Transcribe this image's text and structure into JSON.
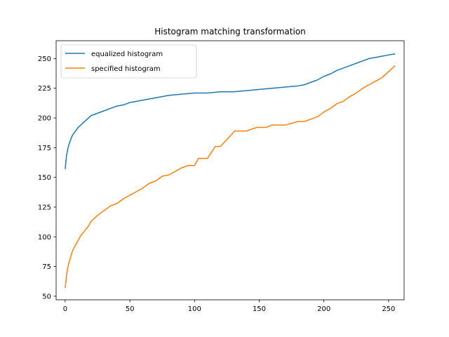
{
  "chart_data": {
    "type": "line",
    "title": "Histogram matching transformation",
    "xlabel": "",
    "ylabel": "",
    "xlim": [
      -7,
      262
    ],
    "ylim": [
      47,
      265
    ],
    "xticks": [
      0,
      50,
      100,
      150,
      200,
      250
    ],
    "yticks": [
      50,
      75,
      100,
      125,
      150,
      175,
      200,
      225,
      250
    ],
    "legend_position": "top-left",
    "grid": false,
    "series": [
      {
        "name": "equalized histogram",
        "color": "#1f77b4",
        "x": [
          0,
          1,
          2,
          3,
          4,
          5,
          6,
          8,
          10,
          12,
          15,
          18,
          20,
          25,
          30,
          35,
          40,
          45,
          50,
          55,
          60,
          70,
          80,
          90,
          100,
          110,
          120,
          130,
          140,
          150,
          160,
          170,
          180,
          185,
          190,
          195,
          200,
          205,
          210,
          215,
          220,
          225,
          230,
          235,
          240,
          245,
          250,
          255
        ],
        "y": [
          157,
          168,
          174,
          178,
          181,
          184,
          186,
          189,
          192,
          194,
          197,
          200,
          202,
          204,
          206,
          208,
          210,
          211,
          213,
          214,
          215,
          217,
          219,
          220,
          221,
          221,
          222,
          222,
          223,
          224,
          225,
          226,
          227,
          228,
          230,
          232,
          235,
          237,
          240,
          242,
          244,
          246,
          248,
          250,
          251,
          252,
          253,
          254
        ]
      },
      {
        "name": "specified histogram",
        "color": "#ff7f0e",
        "x": [
          0,
          1,
          2,
          3,
          4,
          5,
          6,
          8,
          10,
          12,
          15,
          18,
          20,
          25,
          30,
          35,
          40,
          45,
          50,
          55,
          60,
          65,
          70,
          75,
          80,
          85,
          90,
          95,
          100,
          103,
          110,
          116,
          120,
          131,
          140,
          148,
          155,
          160,
          170,
          180,
          185,
          190,
          195,
          200,
          205,
          210,
          215,
          220,
          225,
          230,
          235,
          240,
          245,
          250,
          255
        ],
        "y": [
          57,
          67,
          74,
          79,
          82,
          86,
          89,
          93,
          97,
          101,
          105,
          109,
          113,
          118,
          122,
          126,
          128,
          132,
          135,
          138,
          141,
          145,
          147,
          151,
          152,
          155,
          158,
          160,
          160,
          166,
          166,
          176,
          176,
          189,
          189,
          192,
          192,
          194,
          194,
          197,
          197,
          199,
          201,
          205,
          208,
          212,
          214,
          218,
          221,
          225,
          228,
          231,
          234,
          239,
          244
        ]
      }
    ]
  }
}
